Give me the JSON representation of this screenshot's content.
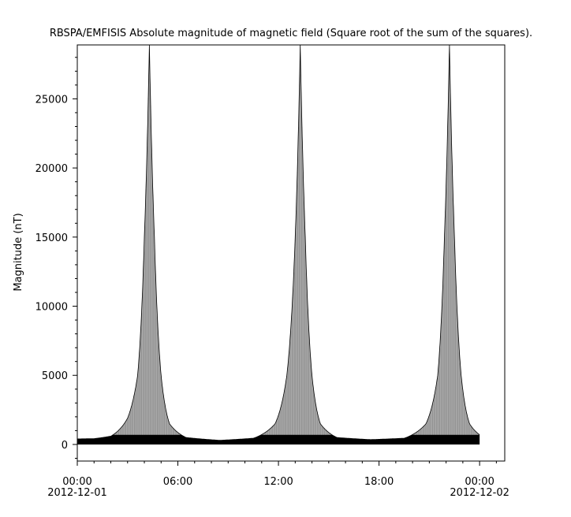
{
  "chart_data": {
    "type": "area",
    "title": "RBSPA/EMFISIS  Absolute magnitude of magnetic field (Square root of the sum of the squares).",
    "ylabel": "Magnitude (nT)",
    "xlabel": "",
    "ylim": [
      -1200,
      28900
    ],
    "xlim": [
      0,
      25.5
    ],
    "y_ticks": [
      0,
      5000,
      10000,
      15000,
      20000,
      25000
    ],
    "y_tick_labels": [
      "0",
      "5000",
      "10000",
      "15000",
      "20000",
      "25000"
    ],
    "x_ticks": [
      0,
      6,
      12,
      18,
      24
    ],
    "x_tick_labels": [
      [
        "00:00",
        "2012-12-01"
      ],
      [
        "06:00",
        ""
      ],
      [
        "12:00",
        ""
      ],
      [
        "18:00",
        ""
      ],
      [
        "00:00",
        "2012-12-02"
      ]
    ],
    "grid": false,
    "series": [
      {
        "color": "#000000",
        "note_envelope_points": [
          {
            "hours": 0.0,
            "upper": 400
          },
          {
            "hours": 1.0,
            "upper": 420
          },
          {
            "hours": 2.0,
            "upper": 600
          },
          {
            "hours": 3.0,
            "upper": 1900
          },
          {
            "hours": 3.6,
            "upper": 5000
          },
          {
            "hours": 4.0,
            "upper": 15000
          },
          {
            "hours": 4.3,
            "upper": 28900
          },
          {
            "hours": 4.6,
            "upper": 15000
          },
          {
            "hours": 5.0,
            "upper": 5000
          },
          {
            "hours": 5.5,
            "upper": 1500
          },
          {
            "hours": 6.5,
            "upper": 500
          },
          {
            "hours": 8.5,
            "upper": 300
          },
          {
            "hours": 10.5,
            "upper": 450
          },
          {
            "hours": 11.8,
            "upper": 1500
          },
          {
            "hours": 12.5,
            "upper": 5000
          },
          {
            "hours": 13.0,
            "upper": 15000
          },
          {
            "hours": 13.3,
            "upper": 28900
          },
          {
            "hours": 13.6,
            "upper": 15000
          },
          {
            "hours": 14.0,
            "upper": 5000
          },
          {
            "hours": 14.5,
            "upper": 1500
          },
          {
            "hours": 15.5,
            "upper": 500
          },
          {
            "hours": 17.5,
            "upper": 350
          },
          {
            "hours": 19.5,
            "upper": 450
          },
          {
            "hours": 20.8,
            "upper": 1500
          },
          {
            "hours": 21.5,
            "upper": 5000
          },
          {
            "hours": 21.9,
            "upper": 15000
          },
          {
            "hours": 22.2,
            "upper": 28900
          },
          {
            "hours": 22.5,
            "upper": 15000
          },
          {
            "hours": 22.9,
            "upper": 5000
          },
          {
            "hours": 23.4,
            "upper": 1500
          },
          {
            "hours": 24.0,
            "upper": 700
          }
        ]
      }
    ]
  }
}
